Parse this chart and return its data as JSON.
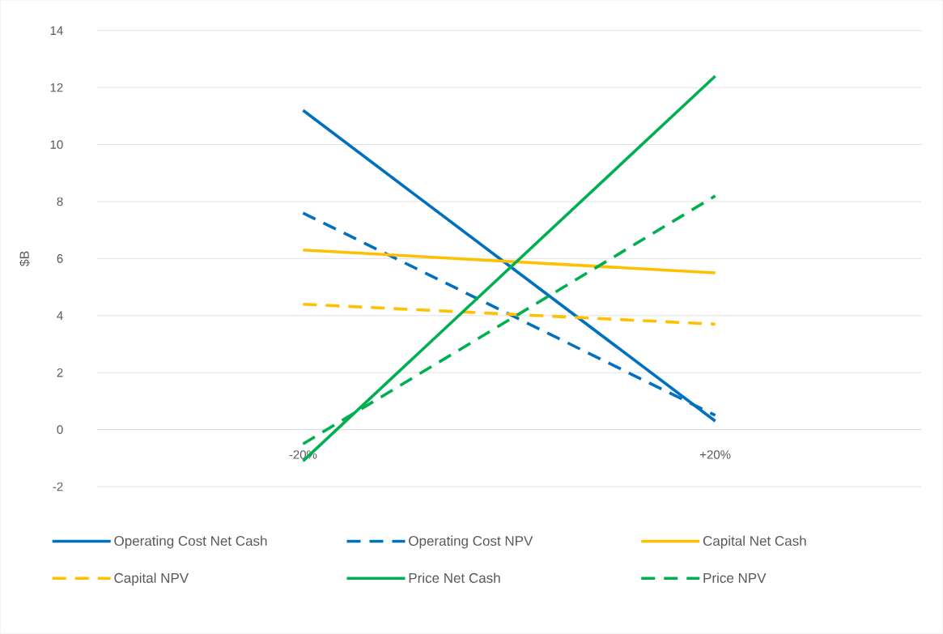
{
  "chart_data": {
    "type": "line",
    "ylabel": "$B",
    "categories": [
      "-20%",
      "+20%"
    ],
    "series": [
      {
        "name": "Operating Cost Net Cash",
        "color": "#0070c0",
        "line_style": "solid",
        "values": [
          11.2,
          0.3
        ]
      },
      {
        "name": "Operating Cost NPV",
        "color": "#0070c0",
        "line_style": "dashed",
        "values": [
          7.6,
          0.5
        ]
      },
      {
        "name": "Capital Net Cash",
        "color": "#ffc000",
        "line_style": "solid",
        "values": [
          6.3,
          5.5
        ]
      },
      {
        "name": "Capital NPV",
        "color": "#ffc000",
        "line_style": "dashed",
        "values": [
          4.4,
          3.7
        ]
      },
      {
        "name": "Price Net Cash",
        "color": "#00b050",
        "line_style": "solid",
        "values": [
          -1.1,
          12.4
        ]
      },
      {
        "name": "Price NPV",
        "color": "#00b050",
        "line_style": "dashed",
        "values": [
          -0.5,
          8.2
        ]
      }
    ],
    "ylim": [
      -2,
      14
    ],
    "yticks": [
      -2,
      0,
      2,
      4,
      6,
      8,
      10,
      12,
      14
    ],
    "grid": "y",
    "legend": "bottom",
    "marker": "none"
  }
}
